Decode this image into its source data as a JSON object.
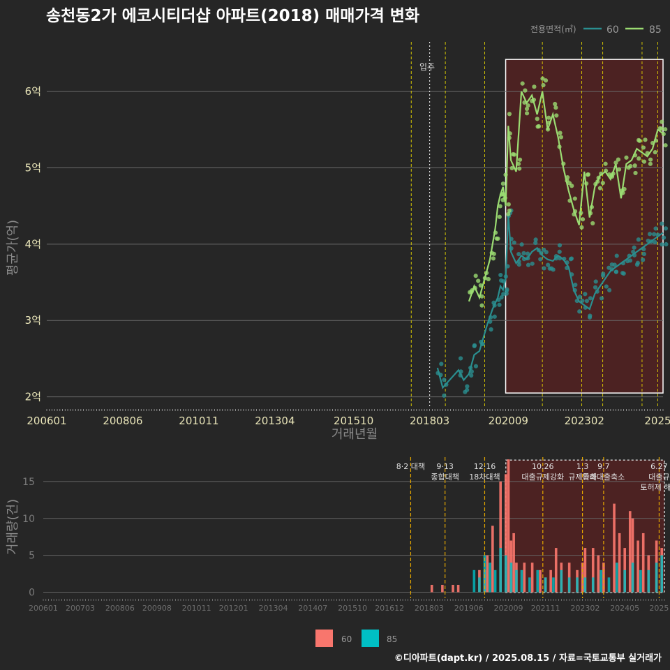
{
  "title": "송천동2가 에코시티더샵 아파트(2018) 매매가격 변화",
  "credit": "©디아파트(dapt.kr) / 2025.08.15 / 자료=국토교통부 실거래가",
  "colors": {
    "s60": "#2a8f90",
    "s85": "#9bdc72",
    "bar60": "#f8766d",
    "bar85": "#00bfc4",
    "highlight": "#5a2222"
  },
  "chart_data": [
    {
      "type": "line",
      "title": "송천동2가 에코시티더샵 아파트(2018) 매매가격 변화",
      "xlabel": "거래년월",
      "ylabel": "평균가(억)",
      "x_tick_labels": [
        "200601",
        "200806",
        "201011",
        "201304",
        "201510",
        "201803",
        "202009",
        "202302",
        "2025"
      ],
      "y_tick_labels": [
        "2억",
        "3억",
        "4억",
        "5억",
        "6억"
      ],
      "y_ticks": [
        2,
        3,
        4,
        5,
        6
      ],
      "ylim": [
        1.85,
        6.65
      ],
      "xlim": [
        "2006-01",
        "2025-08"
      ],
      "legend_title": "전용면적(㎡)",
      "legend_position": "top-right",
      "event_lines": [
        "2017-08",
        "2018-09",
        "2019-12",
        "2021-10",
        "2023-01",
        "2023-09",
        "2024-12",
        "2025-06"
      ],
      "move_in": {
        "x": "2018-03",
        "label": "입주"
      },
      "highlight_range": [
        "2020-08",
        "2025-08"
      ],
      "series": [
        {
          "name": "60",
          "line": [
            [
              "2018-06",
              2.38
            ],
            [
              "2018-08",
              2.12
            ],
            [
              "2019-02",
              2.35
            ],
            [
              "2019-04",
              2.22
            ],
            [
              "2019-06",
              2.3
            ],
            [
              "2019-08",
              2.55
            ],
            [
              "2019-10",
              2.6
            ],
            [
              "2020-01",
              2.95
            ],
            [
              "2020-03",
              3.15
            ],
            [
              "2020-05",
              3.3
            ],
            [
              "2020-06",
              3.45
            ],
            [
              "2020-07",
              3.4
            ],
            [
              "2020-08",
              3.55
            ],
            [
              "2020-09",
              4.38
            ],
            [
              "2020-10",
              3.9
            ],
            [
              "2020-12",
              3.75
            ],
            [
              "2021-02",
              3.85
            ],
            [
              "2021-04",
              3.8
            ],
            [
              "2021-06",
              3.9
            ],
            [
              "2021-08",
              3.95
            ],
            [
              "2021-10",
              3.85
            ],
            [
              "2021-12",
              3.8
            ],
            [
              "2022-02",
              3.78
            ],
            [
              "2022-04",
              3.85
            ],
            [
              "2022-06",
              3.8
            ],
            [
              "2022-08",
              3.7
            ],
            [
              "2022-10",
              3.4
            ],
            [
              "2022-12",
              3.25
            ],
            [
              "2023-02",
              3.2
            ],
            [
              "2023-04",
              3.15
            ],
            [
              "2023-06",
              3.35
            ],
            [
              "2023-08",
              3.45
            ],
            [
              "2023-10",
              3.55
            ],
            [
              "2023-12",
              3.65
            ],
            [
              "2024-02",
              3.7
            ],
            [
              "2024-04",
              3.75
            ],
            [
              "2024-06",
              3.8
            ],
            [
              "2024-08",
              3.85
            ],
            [
              "2024-10",
              3.9
            ],
            [
              "2024-12",
              3.95
            ],
            [
              "2025-02",
              4.0
            ],
            [
              "2025-04",
              4.05
            ],
            [
              "2025-06",
              4.1
            ],
            [
              "2025-08",
              4.15
            ]
          ]
        },
        {
          "name": "85",
          "line": [
            [
              "2019-06",
              3.25
            ],
            [
              "2019-08",
              3.45
            ],
            [
              "2019-10",
              3.3
            ],
            [
              "2019-12",
              3.55
            ],
            [
              "2020-02",
              3.8
            ],
            [
              "2020-04",
              4.2
            ],
            [
              "2020-05",
              4.5
            ],
            [
              "2020-06",
              4.65
            ],
            [
              "2020-07",
              4.75
            ],
            [
              "2020-08",
              4.5
            ],
            [
              "2020-09",
              5.55
            ],
            [
              "2020-10",
              5.1
            ],
            [
              "2020-12",
              4.95
            ],
            [
              "2021-02",
              6.0
            ],
            [
              "2021-04",
              5.85
            ],
            [
              "2021-06",
              5.95
            ],
            [
              "2021-08",
              5.7
            ],
            [
              "2021-10",
              6.0
            ],
            [
              "2021-12",
              5.5
            ],
            [
              "2022-02",
              5.7
            ],
            [
              "2022-04",
              5.4
            ],
            [
              "2022-06",
              5.0
            ],
            [
              "2022-08",
              4.7
            ],
            [
              "2022-10",
              4.45
            ],
            [
              "2022-12",
              4.25
            ],
            [
              "2023-02",
              4.95
            ],
            [
              "2023-04",
              4.35
            ],
            [
              "2023-06",
              4.75
            ],
            [
              "2023-08",
              4.9
            ],
            [
              "2023-10",
              4.95
            ],
            [
              "2023-12",
              4.85
            ],
            [
              "2024-02",
              5.05
            ],
            [
              "2024-04",
              4.6
            ],
            [
              "2024-06",
              5.05
            ],
            [
              "2024-08",
              5.1
            ],
            [
              "2024-10",
              5.25
            ],
            [
              "2024-12",
              5.2
            ],
            [
              "2025-02",
              5.15
            ],
            [
              "2025-04",
              5.25
            ],
            [
              "2025-06",
              5.5
            ],
            [
              "2025-08",
              5.45
            ]
          ]
        }
      ]
    },
    {
      "type": "bar",
      "xlabel": "",
      "ylabel": "거래량(건)",
      "x_tick_labels": [
        "200601",
        "200703",
        "200806",
        "200908",
        "201011",
        "201201",
        "201304",
        "201407",
        "201510",
        "201612",
        "201803",
        "201906",
        "202009",
        "202111",
        "202302",
        "202405",
        "2025"
      ],
      "y_tick_labels": [
        "0",
        "5",
        "10",
        "15"
      ],
      "y_ticks": [
        0,
        5,
        10,
        15
      ],
      "ylim": [
        -0.8,
        18.3
      ],
      "xlim": [
        "2006-01",
        "2025-08"
      ],
      "highlight_range": [
        "2020-08",
        "2025-08"
      ],
      "event_labels": [
        {
          "x": "2017-08",
          "lines": [
            "8·2 대책"
          ]
        },
        {
          "x": "2018-09",
          "lines": [
            "9·13",
            "종합대책"
          ]
        },
        {
          "x": "2019-12",
          "lines": [
            "12·16",
            "18차대책"
          ]
        },
        {
          "x": "2021-10",
          "lines": [
            "10.26",
            "대출규제강화"
          ]
        },
        {
          "x": "2023-01",
          "lines": [
            "1.3",
            "규제완화"
          ]
        },
        {
          "x": "2023-09",
          "lines": [
            "9.7",
            "특례대출축소"
          ]
        },
        {
          "x": "2025-06",
          "lines": [
            "6.27",
            "대출규",
            "토허제 해제"
          ]
        }
      ],
      "legend_position": "bottom",
      "series": [
        {
          "name": "60",
          "values": [
            [
              2018,
              4,
              1
            ],
            [
              2018,
              8,
              1
            ],
            [
              2018,
              12,
              1
            ],
            [
              2019,
              2,
              1
            ],
            [
              2019,
              10,
              3
            ],
            [
              2019,
              12,
              3
            ],
            [
              2020,
              1,
              5
            ],
            [
              2020,
              3,
              9
            ],
            [
              2020,
              6,
              15
            ],
            [
              2020,
              8,
              16
            ],
            [
              2020,
              9,
              18
            ],
            [
              2020,
              10,
              7
            ],
            [
              2020,
              11,
              8
            ],
            [
              2020,
              12,
              4
            ],
            [
              2021,
              3,
              4
            ],
            [
              2021,
              6,
              4
            ],
            [
              2021,
              9,
              3
            ],
            [
              2021,
              11,
              2
            ],
            [
              2022,
              1,
              3
            ],
            [
              2022,
              3,
              6
            ],
            [
              2022,
              5,
              4
            ],
            [
              2022,
              8,
              4
            ],
            [
              2022,
              11,
              3
            ],
            [
              2023,
              1,
              4
            ],
            [
              2023,
              2,
              6
            ],
            [
              2023,
              5,
              6
            ],
            [
              2023,
              7,
              5
            ],
            [
              2023,
              9,
              4
            ],
            [
              2024,
              1,
              12
            ],
            [
              2024,
              3,
              8
            ],
            [
              2024,
              5,
              6
            ],
            [
              2024,
              7,
              11
            ],
            [
              2024,
              8,
              10
            ],
            [
              2024,
              10,
              7
            ],
            [
              2024,
              12,
              8
            ],
            [
              2025,
              2,
              5
            ],
            [
              2025,
              5,
              7
            ],
            [
              2025,
              7,
              6
            ]
          ]
        },
        {
          "name": "85",
          "values": [
            [
              2019,
              8,
              3
            ],
            [
              2019,
              10,
              2
            ],
            [
              2019,
              12,
              5
            ],
            [
              2020,
              2,
              4
            ],
            [
              2020,
              4,
              3
            ],
            [
              2020,
              6,
              6
            ],
            [
              2020,
              8,
              5
            ],
            [
              2020,
              10,
              4
            ],
            [
              2020,
              12,
              3
            ],
            [
              2021,
              2,
              3
            ],
            [
              2021,
              5,
              2
            ],
            [
              2021,
              8,
              3
            ],
            [
              2021,
              11,
              2
            ],
            [
              2022,
              2,
              2
            ],
            [
              2022,
              5,
              3
            ],
            [
              2022,
              8,
              2
            ],
            [
              2022,
              11,
              2
            ],
            [
              2023,
              2,
              2
            ],
            [
              2023,
              5,
              2
            ],
            [
              2023,
              8,
              3
            ],
            [
              2023,
              11,
              2
            ],
            [
              2024,
              2,
              4
            ],
            [
              2024,
              5,
              3
            ],
            [
              2024,
              8,
              4
            ],
            [
              2024,
              11,
              3
            ],
            [
              2025,
              2,
              3
            ],
            [
              2025,
              5,
              4
            ],
            [
              2025,
              7,
              5
            ]
          ]
        }
      ]
    }
  ]
}
